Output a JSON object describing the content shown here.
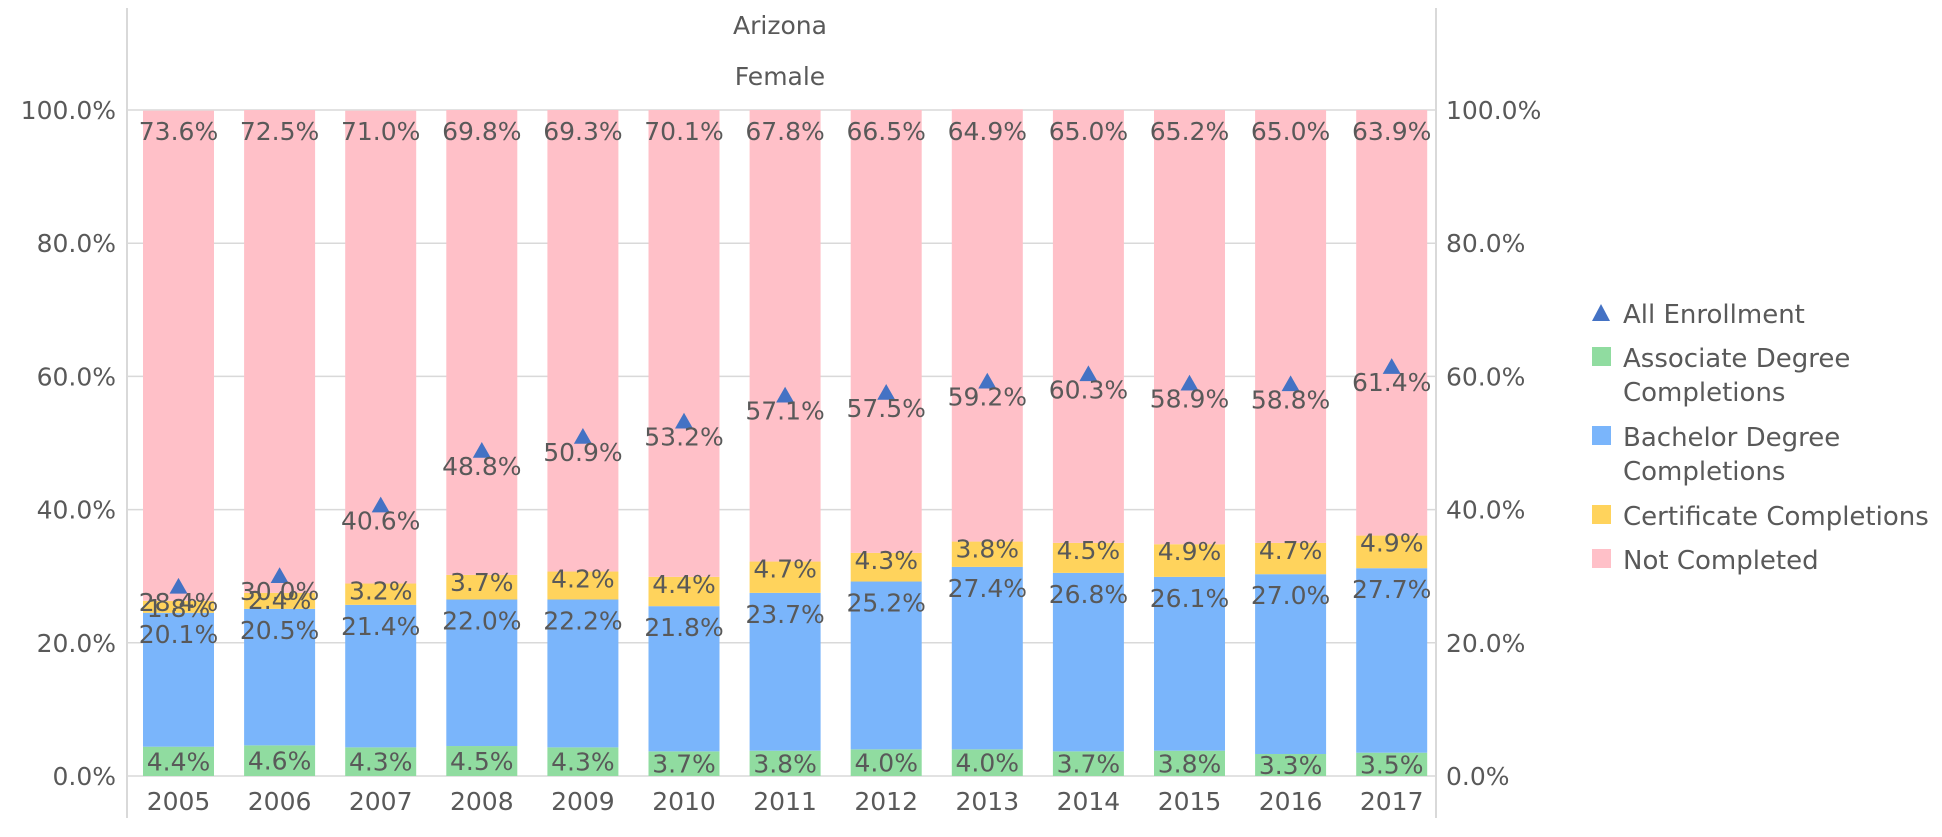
{
  "colors": {
    "associate": "#90dca0",
    "bachelor": "#7ab5fb",
    "certificate": "#ffd35c",
    "not_completed": "#ffc0c8",
    "all_enrollment": "#4472c4",
    "grid": "#d9d9d9",
    "axis": "#d9d9d9",
    "text": "#595959"
  },
  "chart_data": {
    "type": "bar",
    "stacked": true,
    "title": "Arizona",
    "subtitle": "Female",
    "categories": [
      "2005",
      "2006",
      "2007",
      "2008",
      "2009",
      "2010",
      "2011",
      "2012",
      "2013",
      "2014",
      "2015",
      "2016",
      "2017"
    ],
    "ylim": [
      0,
      100
    ],
    "yticks": [
      "0.0%",
      "20.0%",
      "40.0%",
      "60.0%",
      "80.0%",
      "100.0%"
    ],
    "series": [
      {
        "name": "Associate Degree Completions",
        "key": "associate",
        "values": [
          4.4,
          4.6,
          4.3,
          4.5,
          4.3,
          3.7,
          3.8,
          4.0,
          4.0,
          3.7,
          3.8,
          3.3,
          3.5
        ],
        "labels": [
          "4.4%",
          "4.6%",
          "4.3%",
          "4.5%",
          "4.3%",
          "3.7%",
          "3.8%",
          "4.0%",
          "4.0%",
          "3.7%",
          "3.8%",
          "3.3%",
          "3.5%"
        ]
      },
      {
        "name": "Bachelor Degree Completions",
        "key": "bachelor",
        "values": [
          20.1,
          20.5,
          21.4,
          22.0,
          22.2,
          21.8,
          23.7,
          25.2,
          27.4,
          26.8,
          26.1,
          27.0,
          27.7
        ],
        "labels": [
          "20.1%",
          "20.5%",
          "21.4%",
          "22.0%",
          "22.2%",
          "21.8%",
          "23.7%",
          "25.2%",
          "27.4%",
          "26.8%",
          "26.1%",
          "27.0%",
          "27.7%"
        ]
      },
      {
        "name": "Certificate Completions",
        "key": "certificate",
        "values": [
          1.8,
          2.4,
          3.2,
          3.7,
          4.2,
          4.4,
          4.7,
          4.3,
          3.8,
          4.5,
          4.9,
          4.7,
          4.9
        ],
        "labels": [
          "1.8%",
          "2.4%",
          "3.2%",
          "3.7%",
          "4.2%",
          "4.4%",
          "4.7%",
          "4.3%",
          "3.8%",
          "4.5%",
          "4.9%",
          "4.7%",
          "4.9%"
        ]
      },
      {
        "name": "Not Completed",
        "key": "not_completed",
        "values": [
          73.6,
          72.5,
          71.0,
          69.8,
          69.3,
          70.1,
          67.8,
          66.5,
          64.9,
          65.0,
          65.2,
          65.0,
          63.9
        ],
        "labels": [
          "73.6%",
          "72.5%",
          "71.0%",
          "69.8%",
          "69.3%",
          "70.1%",
          "67.8%",
          "66.5%",
          "64.9%",
          "65.0%",
          "65.2%",
          "65.0%",
          "63.9%"
        ]
      }
    ],
    "line_series": {
      "name": "All Enrollment",
      "marker": "triangle",
      "values": [
        28.4,
        30.0,
        40.6,
        48.8,
        50.9,
        53.2,
        57.1,
        57.5,
        59.2,
        60.3,
        58.9,
        58.8,
        61.4
      ],
      "labels": [
        "28.4%",
        "30.0%",
        "40.6%",
        "48.8%",
        "50.9%",
        "53.2%",
        "57.1%",
        "57.5%",
        "59.2%",
        "60.3%",
        "58.9%",
        "58.8%",
        "61.4%"
      ]
    },
    "legend": {
      "position": "right",
      "items": [
        {
          "lines": [
            "All Enrollment"
          ],
          "key": "all_enrollment",
          "symbol": "triangle"
        },
        {
          "lines": [
            "Associate Degree",
            "Completions"
          ],
          "key": "associate",
          "symbol": "square"
        },
        {
          "lines": [
            "Bachelor Degree",
            "Completions"
          ],
          "key": "bachelor",
          "symbol": "square"
        },
        {
          "lines": [
            "Certificate Completions"
          ],
          "key": "certificate",
          "symbol": "square"
        },
        {
          "lines": [
            "Not Completed"
          ],
          "key": "not_completed",
          "symbol": "square"
        }
      ]
    }
  }
}
